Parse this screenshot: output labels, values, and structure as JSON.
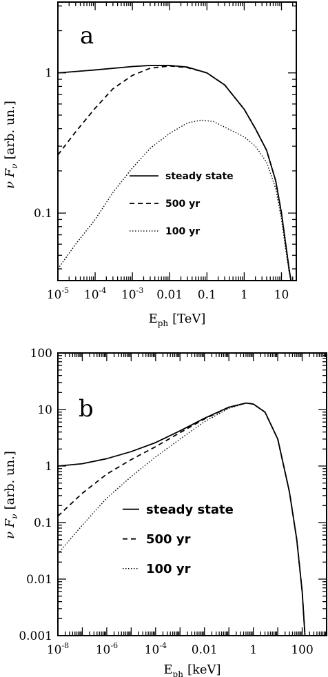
{
  "chart_data": [
    {
      "type": "line",
      "panel_label": "a",
      "xlabel": "E_ph [TeV]",
      "xlabel_main": "E",
      "xlabel_sub": "ph",
      "xlabel_unit": "[TeV]",
      "ylabel": "ν F_ν [arb. un.]",
      "xscale": "log",
      "yscale": "log",
      "xlim": [
        1e-05,
        25
      ],
      "ylim": [
        0.033,
        3.2
      ],
      "xticks": [
        {
          "base": "10",
          "exp": "-5",
          "value": 1e-05
        },
        {
          "base": "10",
          "exp": "-4",
          "value": 0.0001
        },
        {
          "base": "10",
          "exp": "-3",
          "value": 0.001
        },
        {
          "base": "0.01",
          "exp": "",
          "value": 0.01
        },
        {
          "base": "0.1",
          "exp": "",
          "value": 0.1
        },
        {
          "base": "1",
          "exp": "",
          "value": 1
        },
        {
          "base": "10",
          "exp": "",
          "value": 10
        }
      ],
      "yticks": [
        {
          "label": "0.1",
          "value": 0.1
        },
        {
          "label": "1",
          "value": 1
        }
      ],
      "legend": [
        {
          "label": "steady state",
          "style": "solid"
        },
        {
          "label": "500 yr",
          "style": "dashed"
        },
        {
          "label": "100 yr",
          "style": "dotted"
        }
      ],
      "series": [
        {
          "name": "steady state",
          "style": "solid",
          "x": [
            1e-05,
            0.0001,
            0.001,
            0.003,
            0.01,
            0.03,
            0.1,
            0.3,
            1,
            2,
            4,
            7,
            10,
            13,
            16,
            18
          ],
          "y": [
            1.0,
            1.05,
            1.11,
            1.13,
            1.13,
            1.1,
            1.0,
            0.82,
            0.55,
            0.4,
            0.28,
            0.17,
            0.1,
            0.06,
            0.04,
            0.033
          ]
        },
        {
          "name": "500 yr",
          "style": "dashed",
          "x": [
            1e-05,
            3e-05,
            0.0001,
            0.0003,
            0.001,
            0.003,
            0.01,
            0.03,
            0.1,
            0.3,
            1,
            2,
            4,
            7,
            10,
            13,
            16,
            18
          ],
          "y": [
            0.26,
            0.38,
            0.56,
            0.77,
            0.96,
            1.08,
            1.12,
            1.09,
            1.0,
            0.82,
            0.55,
            0.4,
            0.28,
            0.17,
            0.1,
            0.06,
            0.04,
            0.033
          ]
        },
        {
          "name": "100 yr",
          "style": "dotted",
          "x": [
            1e-05,
            3e-05,
            0.0001,
            0.0003,
            0.001,
            0.003,
            0.01,
            0.03,
            0.07,
            0.15,
            0.3,
            1,
            2,
            4,
            7,
            10,
            13,
            16,
            18
          ],
          "y": [
            0.04,
            0.06,
            0.09,
            0.14,
            0.21,
            0.29,
            0.37,
            0.44,
            0.46,
            0.45,
            0.41,
            0.35,
            0.3,
            0.23,
            0.15,
            0.09,
            0.055,
            0.038,
            0.033
          ]
        }
      ]
    },
    {
      "type": "line",
      "panel_label": "b",
      "xlabel": "E_ph [keV]",
      "xlabel_main": "E",
      "xlabel_sub": "ph",
      "xlabel_unit": "[keV]",
      "ylabel": "ν F_ν [arb. un.]",
      "xscale": "log",
      "yscale": "log",
      "xlim": [
        1e-08,
        1000
      ],
      "ylim": [
        0.001,
        100
      ],
      "xticks": [
        {
          "base": "10",
          "exp": "-8",
          "value": 1e-08
        },
        {
          "base": "10",
          "exp": "-6",
          "value": 1e-06
        },
        {
          "base": "10",
          "exp": "-4",
          "value": 0.0001
        },
        {
          "base": "0.01",
          "exp": "",
          "value": 0.01
        },
        {
          "base": "1",
          "exp": "",
          "value": 1
        },
        {
          "base": "100",
          "exp": "",
          "value": 100
        }
      ],
      "yticks": [
        {
          "label": "0.001",
          "value": 0.001
        },
        {
          "label": "0.01",
          "value": 0.01
        },
        {
          "label": "0.1",
          "value": 0.1
        },
        {
          "label": "1",
          "value": 1
        },
        {
          "label": "10",
          "value": 10
        },
        {
          "label": "100",
          "value": 100
        }
      ],
      "legend": [
        {
          "label": "steady state",
          "style": "solid"
        },
        {
          "label": "500 yr",
          "style": "dashed"
        },
        {
          "label": "100 yr",
          "style": "dotted"
        }
      ],
      "series": [
        {
          "name": "steady state",
          "style": "solid",
          "x": [
            1e-08,
            1e-07,
            1e-06,
            1e-05,
            0.0001,
            0.001,
            0.01,
            0.1,
            0.5,
            1,
            3,
            10,
            30,
            60,
            100,
            130
          ],
          "y": [
            1.0,
            1.1,
            1.35,
            1.8,
            2.6,
            4.2,
            7.0,
            11.0,
            13.0,
            12.5,
            9.0,
            3.0,
            0.35,
            0.05,
            0.006,
            0.001
          ]
        },
        {
          "name": "500 yr",
          "style": "dashed",
          "x": [
            1e-08,
            1e-07,
            1e-06,
            1e-05,
            0.0001,
            0.001,
            0.01,
            0.1,
            0.5,
            1,
            3,
            10,
            30,
            60,
            100,
            130
          ],
          "y": [
            0.13,
            0.33,
            0.72,
            1.3,
            2.2,
            3.9,
            6.8,
            10.9,
            13.0,
            12.5,
            9.0,
            3.0,
            0.35,
            0.05,
            0.006,
            0.001
          ]
        },
        {
          "name": "100 yr",
          "style": "dotted",
          "x": [
            1e-08,
            1e-07,
            1e-06,
            1e-05,
            0.0001,
            0.001,
            0.01,
            0.1,
            0.5,
            1,
            3,
            10,
            30,
            60,
            100,
            130
          ],
          "y": [
            0.028,
            0.09,
            0.27,
            0.65,
            1.45,
            3.0,
            6.1,
            10.5,
            12.9,
            12.5,
            9.0,
            3.0,
            0.35,
            0.05,
            0.006,
            0.001
          ]
        }
      ]
    }
  ]
}
